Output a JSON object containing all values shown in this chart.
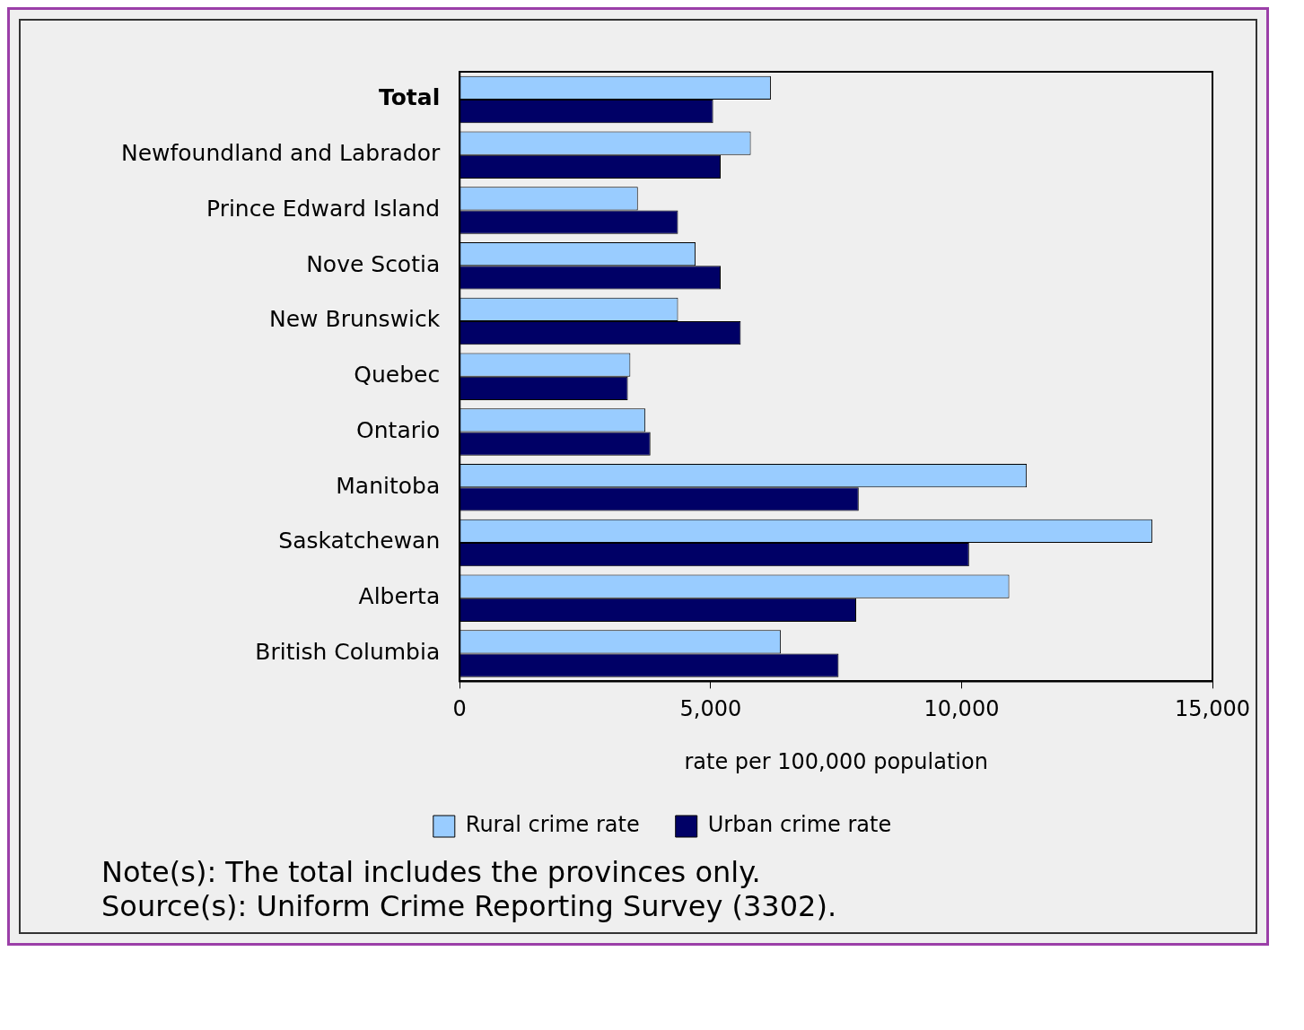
{
  "chart_data": {
    "type": "bar",
    "orientation": "horizontal",
    "xlabel": "rate per 100,000 population",
    "categories": [
      "Total",
      "Newfoundland and Labrador",
      "Prince Edward Island",
      "Nove Scotia",
      "New Brunswick",
      "Quebec",
      "Ontario",
      "Manitoba",
      "Saskatchewan",
      "Alberta",
      "British Columbia"
    ],
    "series": [
      {
        "name": "Rural crime rate",
        "color": "#99ccff",
        "values": [
          6200,
          5800,
          3550,
          4700,
          4350,
          3400,
          3700,
          11300,
          13800,
          10950,
          6400
        ]
      },
      {
        "name": "Urban crime rate",
        "color": "#000066",
        "values": [
          5050,
          5200,
          4350,
          5200,
          5600,
          3350,
          3800,
          7950,
          10150,
          7900,
          7550
        ]
      }
    ],
    "xlim": [
      0,
      15000
    ],
    "xticks": [
      0,
      {
        "value": 5000,
        "label": "5,000"
      },
      {
        "value": 10000,
        "label": "10,000"
      },
      {
        "value": 15000,
        "label": "15,000"
      }
    ],
    "grid": false,
    "legend": "bottom",
    "annotations": [
      "Note(s): The total includes the provinces only.",
      "Source(s): Uniform Crime Reporting Survey (3302)."
    ]
  }
}
